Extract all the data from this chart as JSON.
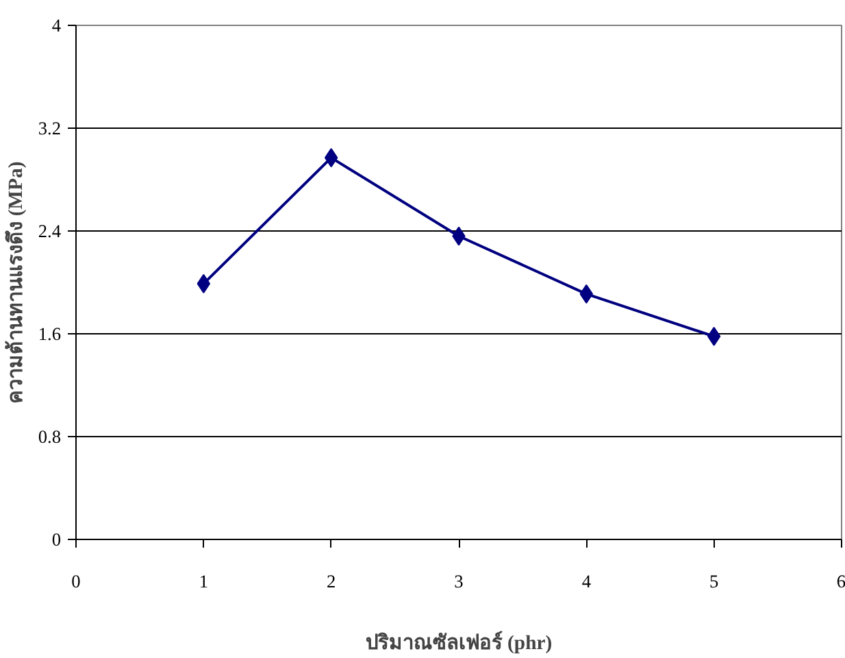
{
  "chart_data": {
    "type": "line",
    "xlabel": "ปริมาณซัลเฟอร์ (phr)",
    "ylabel": "ความต้านทานแรงดึง (MPa)",
    "x": [
      1,
      2,
      3,
      4,
      5
    ],
    "series": [
      {
        "color": "#000080",
        "values": [
          1.99,
          2.97,
          2.36,
          1.91,
          1.58
        ]
      }
    ],
    "xlim": [
      0,
      6
    ],
    "xticks": [
      0,
      1,
      2,
      3,
      4,
      5,
      6
    ],
    "ylim": [
      0,
      4
    ],
    "yticks": [
      0,
      0.8,
      1.6,
      2.4,
      3.2,
      4
    ],
    "grid": "y",
    "marker": "diamond",
    "line_style": "solid"
  }
}
